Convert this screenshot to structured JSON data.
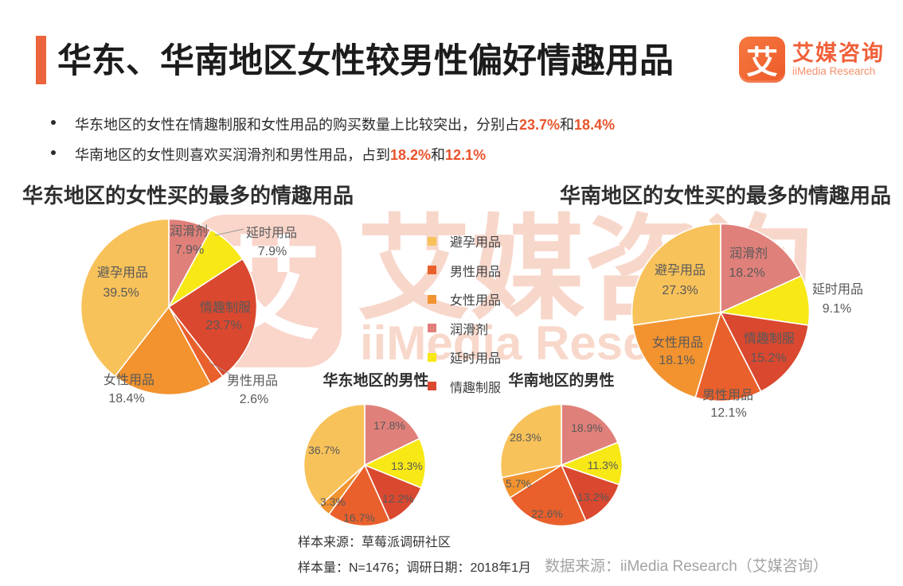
{
  "header": {
    "title": "华东、华南地区女性较男性偏好情趣用品",
    "logo": {
      "glyph": "艾",
      "name_cn": "艾媒咨询",
      "name_en": "iiMedia Research"
    }
  },
  "colors": {
    "accent": "#EC643B",
    "highlight": "#E8542C",
    "logo_orange": "#F0603A",
    "watermark": "#F2A488",
    "label_gray": "#595959",
    "footer_gray": "#A3A3A3"
  },
  "bullets": [
    {
      "text": "华东地区的女性在情趣制服和女性用品的购买数量上比较突出，分别占",
      "pct1": "23.7%",
      "joiner": "和",
      "pct2": "18.4%"
    },
    {
      "text": "华南地区的女性则喜欢买润滑剂和男性用品，占到",
      "pct1": "18.2%",
      "joiner": "和",
      "pct2": "12.1%"
    }
  ],
  "legend": {
    "items": [
      "避孕用品",
      "男性用品",
      "女性用品",
      "润滑剂",
      "延时用品",
      "情趣制服"
    ]
  },
  "series_colors": {
    "避孕用品": "#F8C25A",
    "男性用品": "#E9602C",
    "女性用品": "#F2932F",
    "润滑剂": "#E0807A",
    "延时用品": "#F7E816",
    "情趣制服": "#D9482F"
  },
  "chart_data": [
    {
      "type": "pie",
      "title": "华东地区的女性买的最多的情趣用品",
      "unit": "%",
      "start_angle": "top",
      "direction": "clockwise",
      "slices": [
        {
          "label": "润滑剂",
          "value": 7.9
        },
        {
          "label": "延时用品",
          "value": 7.9
        },
        {
          "label": "情趣制服",
          "value": 23.7
        },
        {
          "label": "男性用品",
          "value": 2.6
        },
        {
          "label": "女性用品",
          "value": 18.4
        },
        {
          "label": "避孕用品",
          "value": 39.5
        }
      ]
    },
    {
      "type": "pie",
      "title": "华南地区的女性买的最多的情趣用品",
      "unit": "%",
      "start_angle": "top",
      "direction": "clockwise",
      "slices": [
        {
          "label": "润滑剂",
          "value": 18.2
        },
        {
          "label": "延时用品",
          "value": 9.1
        },
        {
          "label": "情趣制服",
          "value": 15.2
        },
        {
          "label": "男性用品",
          "value": 12.1
        },
        {
          "label": "女性用品",
          "value": 18.1
        },
        {
          "label": "避孕用品",
          "value": 27.3
        }
      ]
    },
    {
      "type": "pie",
      "title": "华东地区的男性",
      "unit": "%",
      "start_angle": "top",
      "direction": "clockwise",
      "slices": [
        {
          "label": "润滑剂",
          "value": 17.8
        },
        {
          "label": "延时用品",
          "value": 13.3
        },
        {
          "label": "情趣制服",
          "value": 12.2
        },
        {
          "label": "男性用品",
          "value": 16.7
        },
        {
          "label": "女性用品",
          "value": 3.3
        },
        {
          "label": "避孕用品",
          "value": 36.7
        }
      ]
    },
    {
      "type": "pie",
      "title": "华南地区的男性",
      "unit": "%",
      "start_angle": "top",
      "direction": "clockwise",
      "slices": [
        {
          "label": "润滑剂",
          "value": 18.9
        },
        {
          "label": "延时用品",
          "value": 11.3
        },
        {
          "label": "情趣制服",
          "value": 13.2
        },
        {
          "label": "男性用品",
          "value": 22.6
        },
        {
          "label": "女性用品",
          "value": 5.7
        },
        {
          "label": "避孕用品",
          "value": 28.3
        }
      ]
    }
  ],
  "watermark": {
    "glyph": "艾",
    "text_cn": "艾媒咨询",
    "text_en": "iiMedia Rese"
  },
  "footer": {
    "sample_source": "样本来源：草莓派调研社区",
    "sample_info": "样本量：N=1476；调研日期：2018年1月",
    "data_source": "数据来源：iiMedia Research（艾媒咨询）"
  }
}
